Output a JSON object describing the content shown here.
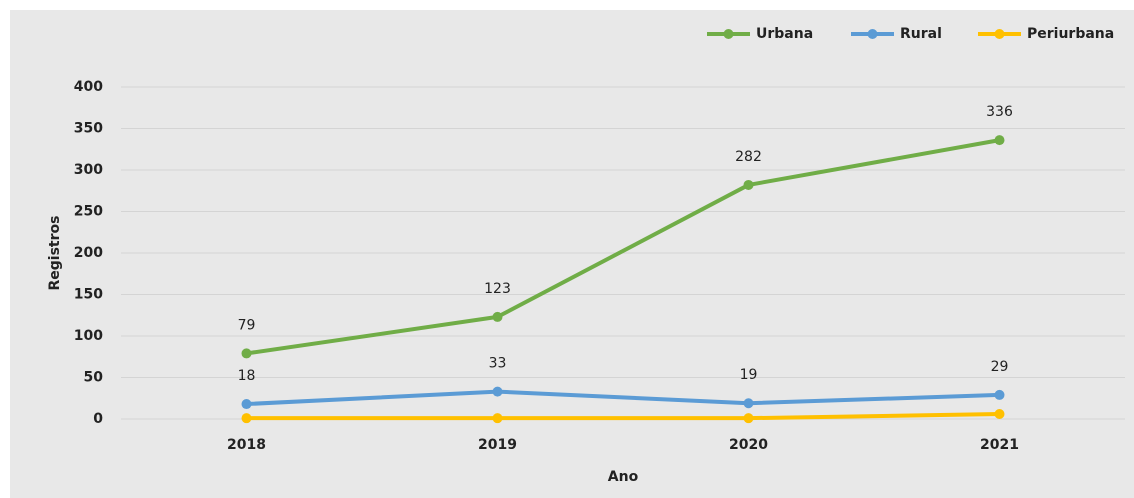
{
  "chart_data": {
    "type": "line",
    "x_label": "Ano",
    "y_label": "Registros",
    "categories": [
      "2018",
      "2019",
      "2020",
      "2021"
    ],
    "series": [
      {
        "name": "Urbana",
        "color": "#70ad47",
        "values": [
          79,
          123,
          282,
          336
        ],
        "data_labels": true
      },
      {
        "name": "Rural",
        "color": "#5b9bd5",
        "values": [
          18,
          33,
          19,
          29
        ],
        "data_labels": true
      },
      {
        "name": "Periurbana",
        "color": "#ffc000",
        "values": [
          1,
          1,
          1,
          6
        ],
        "data_labels": false
      }
    ],
    "ylim": [
      0,
      400
    ],
    "yticks": [
      0,
      50,
      100,
      150,
      200,
      250,
      300,
      350,
      400
    ],
    "grid": true,
    "legend": "top-right"
  }
}
